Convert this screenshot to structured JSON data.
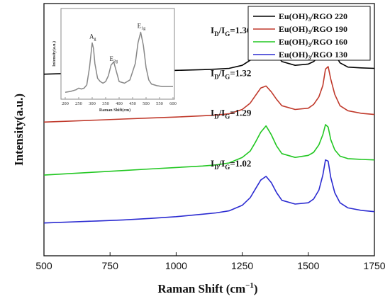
{
  "chart_data": [
    {
      "type": "line",
      "xlabel_main": "Raman Shift (cm",
      "xlabel_sup": "−1",
      "xlabel_tail": ")",
      "ylabel": "Intensity(a.u.)",
      "xlim": [
        500,
        1750
      ],
      "xticks": [
        "500",
        "750",
        "1000",
        "1250",
        "1500",
        "1750"
      ],
      "ylim": [
        0,
        100
      ],
      "grid": false,
      "legend_position": "top-right",
      "series": [
        {
          "name": "Eu(OH)3/RGO 220",
          "name_parts": [
            "Eu(OH)",
            "3",
            "/RGO 220"
          ],
          "color": "#000000",
          "x": [
            500,
            600,
            700,
            800,
            900,
            1000,
            1100,
            1150,
            1200,
            1250,
            1280,
            1300,
            1320,
            1340,
            1360,
            1380,
            1400,
            1450,
            1500,
            1520,
            1540,
            1555,
            1565,
            1575,
            1585,
            1600,
            1620,
            1650,
            1700,
            1750
          ],
          "y": [
            72.0,
            72.3,
            72.6,
            72.9,
            73.2,
            73.5,
            73.8,
            74.0,
            74.3,
            75.5,
            77.5,
            80.2,
            83.0,
            84.2,
            82.5,
            79.5,
            77.0,
            75.5,
            76.0,
            77.0,
            79.0,
            83.0,
            88.5,
            90.8,
            86.0,
            80.0,
            76.5,
            74.8,
            74.5,
            74.3
          ]
        },
        {
          "name": "Eu(OH)3/RGO 190",
          "name_parts": [
            "Eu(OH)",
            "3",
            "/RGO 190"
          ],
          "color": "#c0392b",
          "x": [
            500,
            600,
            700,
            800,
            900,
            1000,
            1100,
            1150,
            1200,
            1250,
            1280,
            1300,
            1320,
            1340,
            1360,
            1380,
            1400,
            1450,
            1500,
            1520,
            1540,
            1555,
            1565,
            1575,
            1585,
            1600,
            1620,
            1650,
            1700,
            1750
          ],
          "y": [
            53.0,
            53.4,
            53.8,
            54.2,
            54.6,
            55.0,
            55.5,
            55.8,
            56.3,
            58.0,
            60.5,
            63.5,
            66.5,
            67.3,
            65.0,
            62.0,
            59.5,
            58.0,
            58.5,
            60.0,
            63.0,
            67.5,
            74.0,
            75.0,
            70.0,
            64.0,
            59.5,
            57.5,
            56.5,
            56.0
          ]
        },
        {
          "name": "Eu(OH)3/RGO 160",
          "name_parts": [
            "Eu(OH)",
            "3",
            "/RGO 160"
          ],
          "color": "#22c722",
          "x": [
            500,
            600,
            700,
            800,
            900,
            1000,
            1100,
            1150,
            1200,
            1250,
            1280,
            1300,
            1320,
            1340,
            1360,
            1380,
            1400,
            1450,
            1500,
            1520,
            1540,
            1555,
            1565,
            1575,
            1585,
            1600,
            1620,
            1650,
            1700,
            1750
          ],
          "y": [
            32.0,
            32.6,
            33.2,
            33.8,
            34.4,
            35.0,
            35.6,
            36.0,
            36.8,
            39.0,
            41.5,
            45.0,
            49.0,
            51.5,
            48.0,
            43.5,
            40.5,
            39.0,
            39.8,
            41.0,
            44.0,
            48.0,
            52.0,
            51.0,
            46.0,
            42.0,
            39.5,
            38.5,
            38.2,
            38.0
          ]
        },
        {
          "name": "Eu(OH)3/RGO 130",
          "name_parts": [
            "Eu(OH)",
            "3",
            "/RGO 130"
          ],
          "color": "#2b2bd1",
          "x": [
            500,
            600,
            700,
            800,
            900,
            1000,
            1100,
            1150,
            1200,
            1250,
            1280,
            1300,
            1320,
            1340,
            1360,
            1380,
            1400,
            1450,
            1500,
            1520,
            1540,
            1555,
            1565,
            1575,
            1585,
            1600,
            1620,
            1650,
            1700,
            1750
          ],
          "y": [
            13.0,
            13.4,
            13.8,
            14.2,
            14.8,
            15.5,
            16.5,
            17.0,
            17.8,
            20.0,
            23.0,
            26.5,
            30.0,
            31.5,
            29.0,
            25.0,
            22.0,
            20.5,
            21.0,
            22.5,
            26.0,
            32.0,
            38.0,
            37.5,
            31.0,
            25.0,
            21.0,
            19.0,
            18.0,
            17.5
          ]
        }
      ],
      "annotations": [
        {
          "main": "I",
          "sub1": "D",
          "mid": "/I",
          "sub2": "G",
          "value": "=1.36",
          "color": "#000000"
        },
        {
          "main": "I",
          "sub1": "D",
          "mid": "/I",
          "sub2": "G",
          "value": "=1.32",
          "color": "#c0392b"
        },
        {
          "main": "I",
          "sub1": "D",
          "mid": "/I",
          "sub2": "G",
          "value": "=1.29",
          "color": "#22c722"
        },
        {
          "main": "I",
          "sub1": "D",
          "mid": "/I",
          "sub2": "G",
          "value": "=1.02",
          "color": "#2b2bd1"
        }
      ]
    },
    {
      "type": "line",
      "inset": true,
      "xlabel": "Raman Shift(cm)",
      "ylabel": "Intensity(a.u.)",
      "xlim": [
        200,
        600
      ],
      "xticks": [
        "200",
        "250",
        "300",
        "350",
        "400",
        "450",
        "500",
        "550",
        "600"
      ],
      "ylim": [
        0,
        100
      ],
      "series": [
        {
          "color": "#888888",
          "x": [
            200,
            220,
            240,
            250,
            260,
            270,
            280,
            290,
            300,
            305,
            310,
            320,
            330,
            340,
            350,
            360,
            370,
            380,
            390,
            400,
            420,
            440,
            460,
            470,
            480,
            490,
            500,
            510,
            520,
            540,
            560,
            580,
            600
          ],
          "y": [
            5,
            6,
            8,
            10,
            9,
            10,
            14,
            35,
            65,
            58,
            40,
            22,
            18,
            16,
            18,
            25,
            38,
            42,
            30,
            18,
            16,
            20,
            40,
            65,
            78,
            62,
            35,
            20,
            15,
            13,
            12,
            12,
            12
          ]
        }
      ],
      "peak_labels": [
        {
          "main": "A",
          "sub": "g",
          "x": 300
        },
        {
          "main": "E",
          "sub": "2g",
          "x": 375
        },
        {
          "main": "E",
          "sub": "1g",
          "x": 478
        }
      ]
    }
  ]
}
